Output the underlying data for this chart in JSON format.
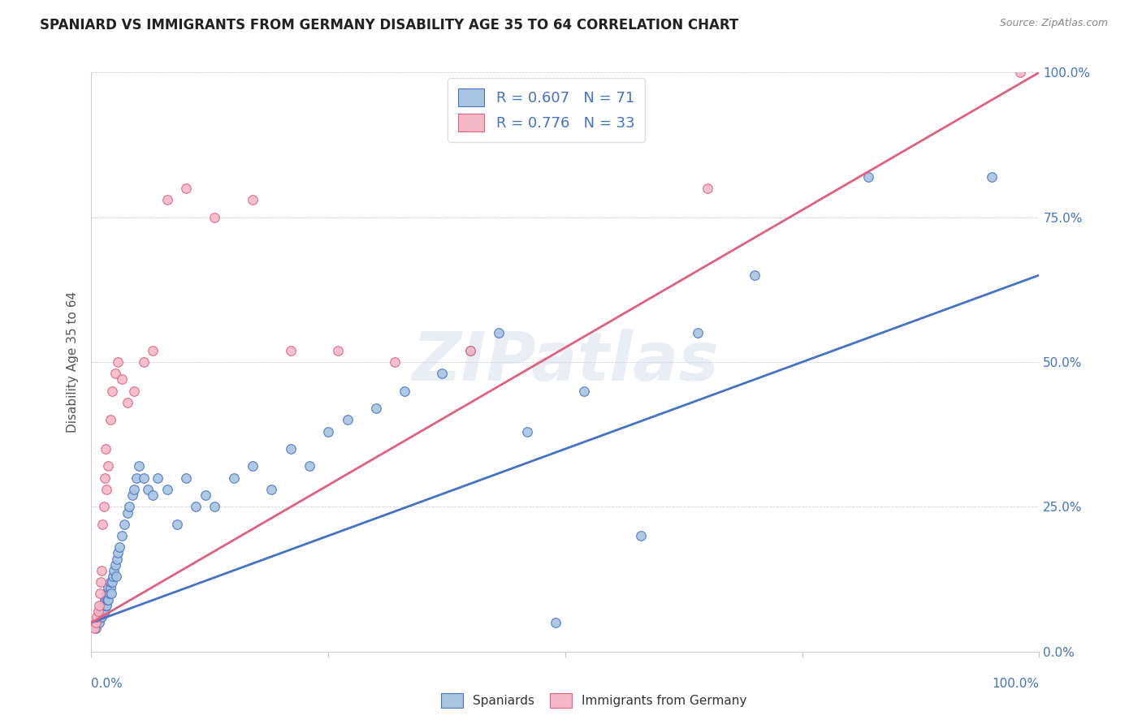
{
  "title": "SPANIARD VS IMMIGRANTS FROM GERMANY DISABILITY AGE 35 TO 64 CORRELATION CHART",
  "source": "Source: ZipAtlas.com",
  "ylabel": "Disability Age 35 to 64",
  "xlim": [
    0,
    1
  ],
  "ylim": [
    0,
    1
  ],
  "series1_color": "#a8c4e0",
  "series1_line_color": "#4472c4",
  "series2_color": "#f4b8c8",
  "series2_line_color": "#e0607e",
  "legend1_label": "R = 0.607   N = 71",
  "legend2_label": "R = 0.776   N = 33",
  "legend_label_spaniards": "Spaniards",
  "legend_label_immigrants": "Immigrants from Germany",
  "watermark": "ZIPatlas",
  "axis_label_color": "#4472c4",
  "spaniards_x": [
    0.005,
    0.007,
    0.008,
    0.009,
    0.01,
    0.01,
    0.011,
    0.012,
    0.012,
    0.013,
    0.013,
    0.014,
    0.014,
    0.015,
    0.015,
    0.016,
    0.016,
    0.017,
    0.017,
    0.018,
    0.018,
    0.019,
    0.02,
    0.02,
    0.021,
    0.022,
    0.023,
    0.024,
    0.025,
    0.026,
    0.027,
    0.028,
    0.03,
    0.032,
    0.035,
    0.038,
    0.04,
    0.043,
    0.045,
    0.048,
    0.05,
    0.055,
    0.06,
    0.065,
    0.07,
    0.08,
    0.09,
    0.1,
    0.11,
    0.12,
    0.13,
    0.15,
    0.17,
    0.19,
    0.21,
    0.23,
    0.25,
    0.27,
    0.3,
    0.33,
    0.37,
    0.4,
    0.43,
    0.46,
    0.49,
    0.52,
    0.58,
    0.64,
    0.7,
    0.82,
    0.95
  ],
  "spaniards_y": [
    0.04,
    0.05,
    0.05,
    0.06,
    0.06,
    0.07,
    0.06,
    0.07,
    0.08,
    0.07,
    0.08,
    0.07,
    0.09,
    0.08,
    0.09,
    0.08,
    0.1,
    0.09,
    0.1,
    0.09,
    0.11,
    0.1,
    0.11,
    0.12,
    0.1,
    0.12,
    0.13,
    0.14,
    0.15,
    0.13,
    0.16,
    0.17,
    0.18,
    0.2,
    0.22,
    0.24,
    0.25,
    0.27,
    0.28,
    0.3,
    0.32,
    0.3,
    0.28,
    0.27,
    0.3,
    0.28,
    0.22,
    0.3,
    0.25,
    0.27,
    0.25,
    0.3,
    0.32,
    0.28,
    0.35,
    0.32,
    0.38,
    0.4,
    0.42,
    0.45,
    0.48,
    0.52,
    0.55,
    0.38,
    0.05,
    0.45,
    0.2,
    0.55,
    0.65,
    0.82,
    0.82
  ],
  "immigrants_x": [
    0.003,
    0.005,
    0.006,
    0.007,
    0.008,
    0.009,
    0.01,
    0.011,
    0.012,
    0.013,
    0.014,
    0.015,
    0.016,
    0.018,
    0.02,
    0.022,
    0.025,
    0.028,
    0.032,
    0.038,
    0.045,
    0.055,
    0.065,
    0.08,
    0.1,
    0.13,
    0.17,
    0.21,
    0.26,
    0.32,
    0.4,
    0.65,
    0.98
  ],
  "immigrants_y": [
    0.04,
    0.05,
    0.06,
    0.07,
    0.08,
    0.1,
    0.12,
    0.14,
    0.22,
    0.25,
    0.3,
    0.35,
    0.28,
    0.32,
    0.4,
    0.45,
    0.48,
    0.5,
    0.47,
    0.43,
    0.45,
    0.5,
    0.52,
    0.78,
    0.8,
    0.75,
    0.78,
    0.52,
    0.52,
    0.5,
    0.52,
    0.8,
    1.0
  ],
  "blue_line_x0": 0.0,
  "blue_line_y0": 0.05,
  "blue_line_x1": 1.0,
  "blue_line_y1": 0.65,
  "pink_line_x0": 0.0,
  "pink_line_y0": 0.05,
  "pink_line_x1": 1.0,
  "pink_line_y1": 1.0
}
